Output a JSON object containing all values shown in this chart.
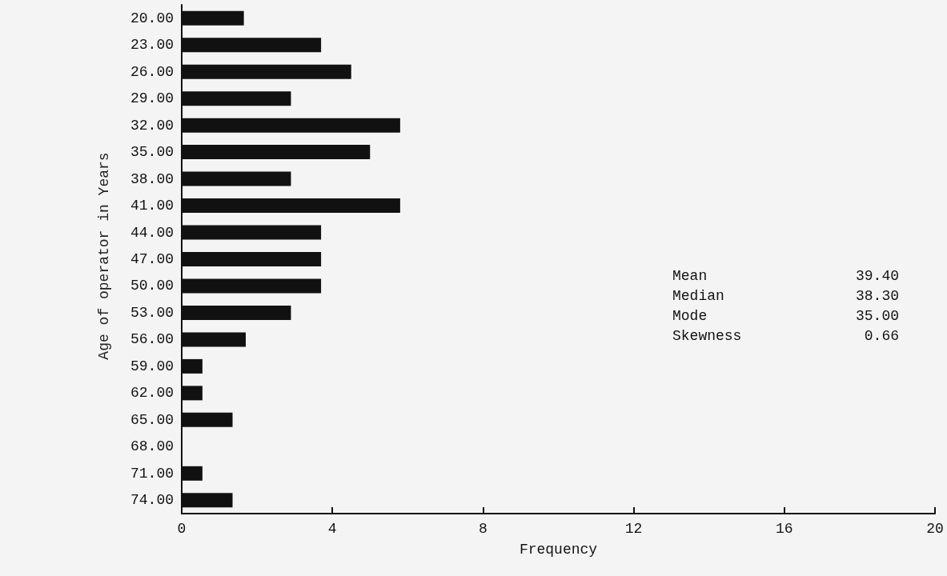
{
  "chart_data": {
    "type": "bar",
    "orientation": "horizontal",
    "xlabel": "Frequency",
    "ylabel": "Age of operator in Years",
    "categories": [
      "20.00",
      "23.00",
      "26.00",
      "29.00",
      "32.00",
      "35.00",
      "38.00",
      "41.00",
      "44.00",
      "47.00",
      "50.00",
      "53.00",
      "56.00",
      "59.00",
      "62.00",
      "65.00",
      "68.00",
      "71.00",
      "74.00"
    ],
    "values": [
      1.65,
      3.7,
      4.5,
      2.9,
      5.8,
      5.0,
      2.9,
      5.8,
      3.7,
      3.7,
      3.7,
      2.9,
      1.7,
      0.55,
      0.55,
      1.35,
      0,
      0.55,
      1.35
    ],
    "color": "#111111",
    "xlim": [
      0,
      20
    ],
    "xticks": [
      0,
      4,
      8,
      12,
      16,
      20
    ],
    "grid": false,
    "annotations": [
      "Mean 39.40",
      "Median 38.30",
      "Mode 35.00",
      "Skewness 0.66"
    ]
  }
}
